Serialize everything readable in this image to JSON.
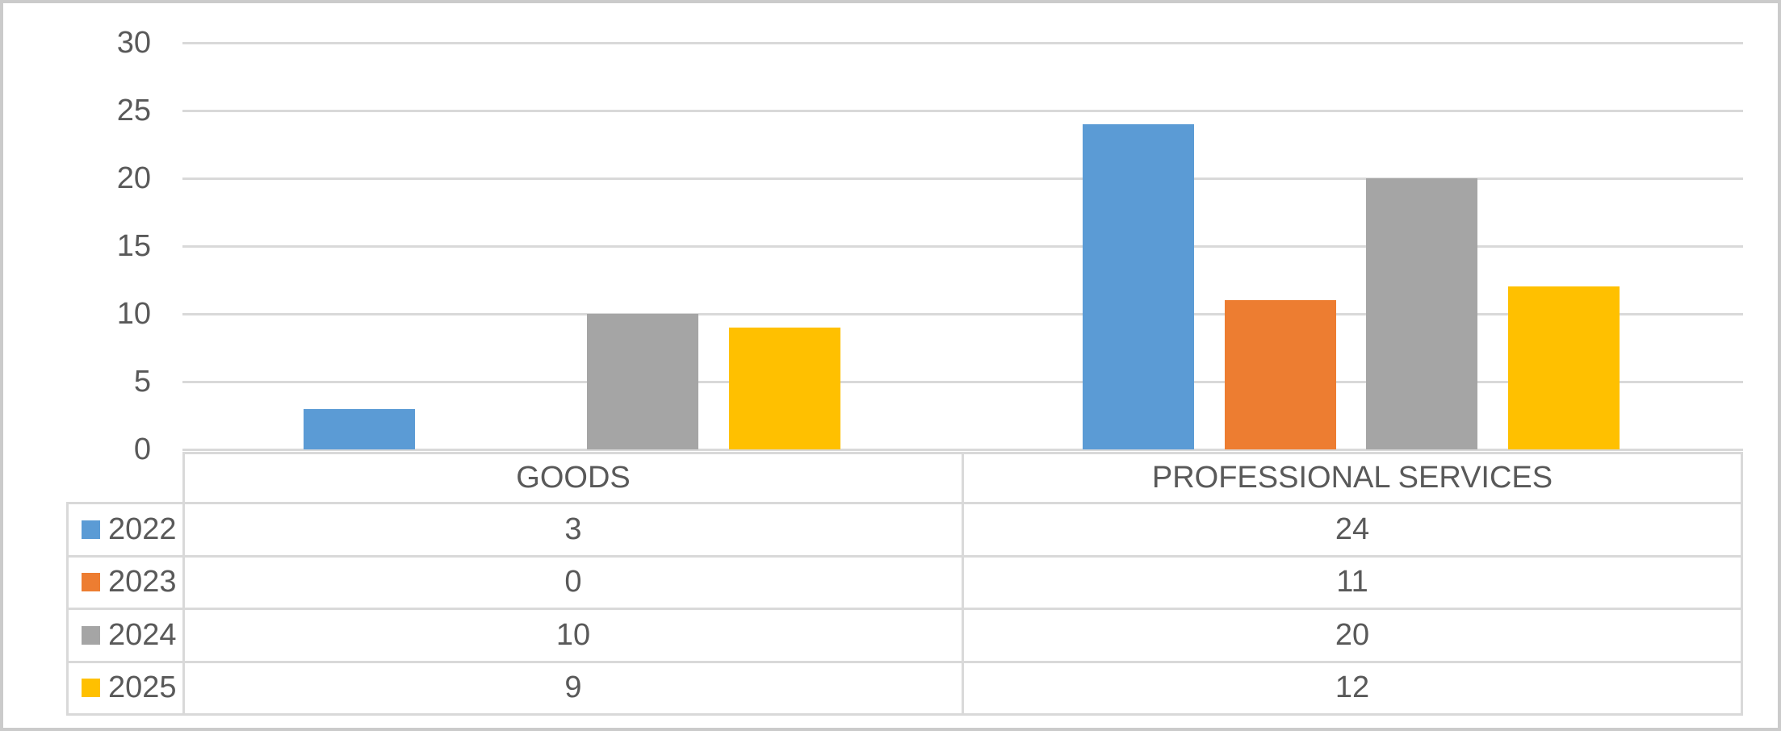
{
  "chart_data": {
    "type": "bar",
    "title": "",
    "xlabel": "",
    "ylabel": "",
    "categories": [
      "GOODS",
      "PROFESSIONAL SERVICES"
    ],
    "series": [
      {
        "name": "2022",
        "color": "#5B9BD5",
        "values": [
          3,
          24
        ]
      },
      {
        "name": "2023",
        "color": "#ED7D31",
        "values": [
          0,
          11
        ]
      },
      {
        "name": "2024",
        "color": "#A5A5A5",
        "values": [
          10,
          20
        ]
      },
      {
        "name": "2025",
        "color": "#FFC000",
        "values": [
          9,
          12
        ]
      }
    ],
    "ylim": [
      0,
      30
    ],
    "yticks": [
      0,
      5,
      10,
      15,
      20,
      25,
      30
    ],
    "grid": true,
    "legend_position": "data-table-left-column",
    "data_table_shown": true
  },
  "colors": {
    "grid": "#D9D9D9",
    "table_border": "#D9D9D9",
    "axis_text": "#595959",
    "outer_border": "#CBCBCB",
    "background": "#FFFFFF"
  }
}
